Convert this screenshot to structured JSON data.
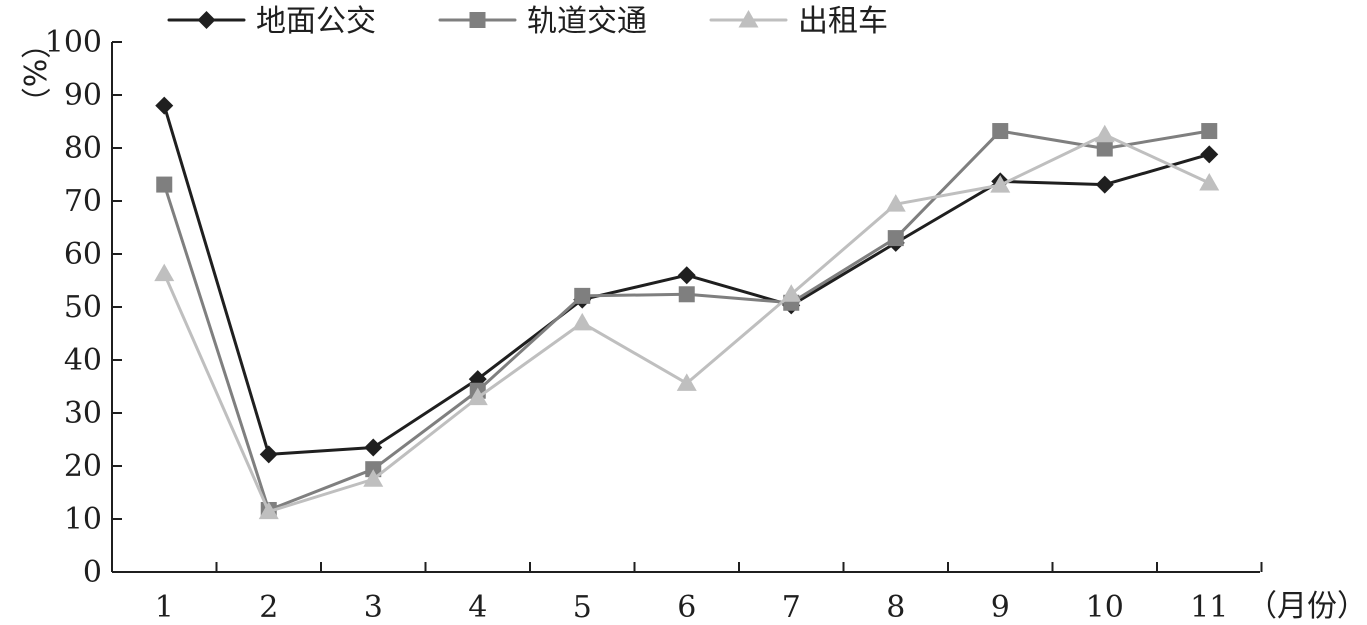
{
  "chart_data": {
    "type": "line",
    "x": [
      1,
      2,
      3,
      4,
      5,
      6,
      7,
      8,
      9,
      10,
      11
    ],
    "categories": [
      "1",
      "2",
      "3",
      "4",
      "5",
      "6",
      "7",
      "8",
      "9",
      "10",
      "11"
    ],
    "ylim": [
      0,
      100
    ],
    "yticks": [
      0,
      10,
      20,
      30,
      40,
      50,
      60,
      70,
      80,
      90,
      100
    ],
    "ylabel": "（%）",
    "xlabel": "（月份）",
    "legend_position": "top",
    "grid": false,
    "series": [
      {
        "name": "地面公交",
        "marker": "diamond",
        "color": "#1f1f1f",
        "values": [
          88,
          22.2,
          23.5,
          36.4,
          51.4,
          56,
          50.3,
          62.1,
          73.7,
          73.1,
          78.8
        ]
      },
      {
        "name": "轨道交通",
        "marker": "square",
        "color": "#7f7f7f",
        "values": [
          73.1,
          11.7,
          19.4,
          34.2,
          52.1,
          52.4,
          50.8,
          63,
          83.2,
          79.9,
          83.2
        ]
      },
      {
        "name": "出租车",
        "marker": "triangle",
        "color": "#bfbfbf",
        "values": [
          56.3,
          11.4,
          17.5,
          32.9,
          47,
          35.6,
          52.4,
          69.4,
          73,
          82.5,
          73.4
        ]
      }
    ]
  }
}
